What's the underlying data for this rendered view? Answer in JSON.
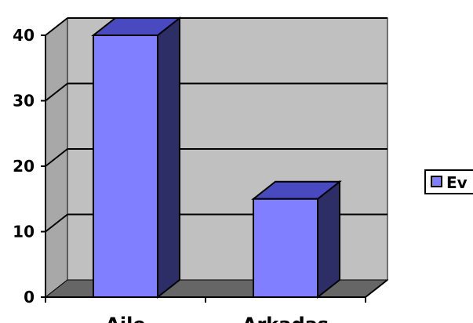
{
  "chart_data": {
    "type": "bar",
    "categories": [
      "Aile",
      "Arkadaş"
    ],
    "series": [
      {
        "name": "Ev",
        "values": [
          40,
          15
        ]
      }
    ],
    "xlabel": "",
    "ylabel": "",
    "ylim": [
      0,
      40
    ],
    "yticks": [
      "0",
      "10",
      "20",
      "30",
      "40"
    ],
    "grid": true,
    "legend_position": "right",
    "style": "3d",
    "colors": {
      "bar_front": "#7f7fff",
      "bar_side": "#2e2e66",
      "bar_top": "#4a4ac0",
      "wall": "#c0c0c0",
      "floor": "#666666",
      "gridline": "#000000"
    }
  }
}
